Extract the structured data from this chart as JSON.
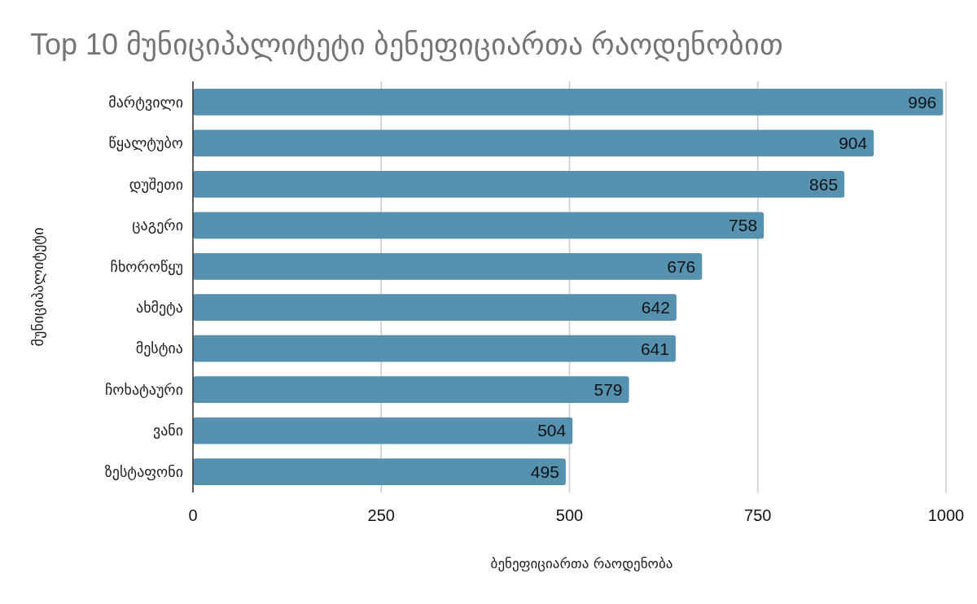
{
  "chart_data": {
    "type": "bar",
    "orientation": "horizontal",
    "title": "Top 10 მუნიციპალიტეტი ბენეფიციართა რაოდენობით",
    "xlabel": "ბენეფიციართა რაოდენობა",
    "ylabel": "მუნიციპალიტეტი",
    "categories": [
      "მარტვილი",
      "წყალტუბო",
      "დუშეთი",
      "ცაგერი",
      "ჩხოროწყუ",
      "ახმეტა",
      "მესტია",
      "ჩოხატაური",
      "ვანი",
      "ზესტაფონი"
    ],
    "series": [
      {
        "color": "#5691af",
        "values": [
          996,
          904,
          865,
          758,
          676,
          642,
          641,
          579,
          504,
          495
        ]
      }
    ],
    "xlim": [
      0,
      1000
    ],
    "xticks": [
      0,
      250,
      500,
      750,
      1000
    ],
    "grid": "x",
    "data_labels": true
  }
}
